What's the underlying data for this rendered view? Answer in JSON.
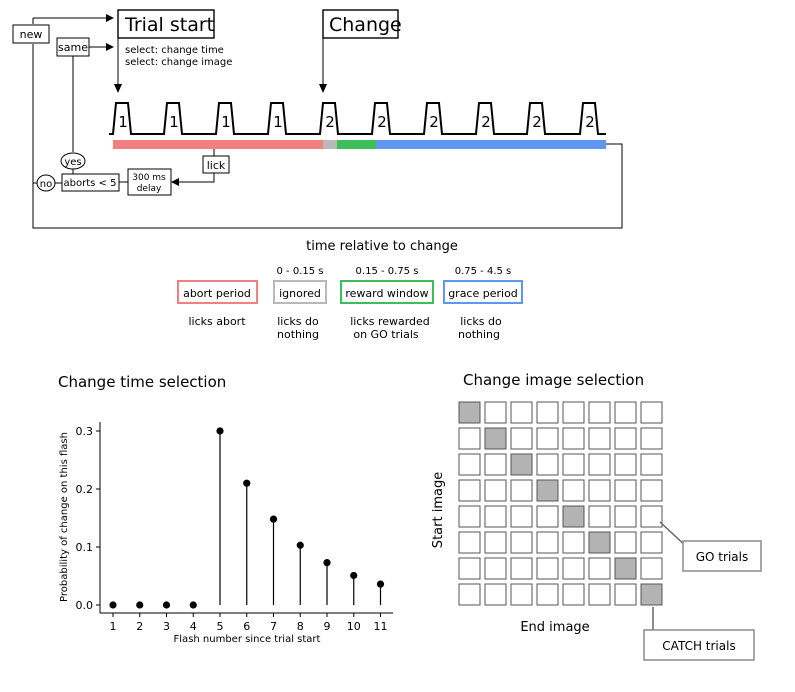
{
  "top": {
    "new_label": "new",
    "same_label": "same",
    "trial_start_label": "Trial start",
    "change_label": "Change",
    "select_lines": [
      "select: change time",
      "select: change image"
    ],
    "flash_numbers": [
      "1",
      "1",
      "1",
      "1",
      "2",
      "2",
      "2",
      "2",
      "2",
      "2"
    ],
    "lick_label": "lick",
    "yes_label": "yes",
    "no_label": "no",
    "aborts_label": "aborts < 5",
    "delay_lines": [
      "300 ms",
      "delay"
    ],
    "period_colors": {
      "abort": "#f28080",
      "ignored": "#b9b9b9",
      "reward": "#3cbf5a",
      "grace": "#5f96f0"
    }
  },
  "legend": {
    "axis_title": "time relative to change",
    "items": [
      {
        "name": "abort-period",
        "range": "",
        "label": "abort period",
        "desc": [
          "licks abort"
        ]
      },
      {
        "name": "ignored",
        "range": "0 - 0.15 s",
        "label": "ignored",
        "desc": [
          "licks do",
          "nothing"
        ]
      },
      {
        "name": "reward-window",
        "range": "0.15 - 0.75 s",
        "label": "reward window",
        "desc": [
          "licks rewarded",
          "on GO trials"
        ]
      },
      {
        "name": "grace-period",
        "range": "0.75 - 4.5 s",
        "label": "grace period",
        "desc": [
          "licks do",
          "nothing"
        ]
      }
    ]
  },
  "chart_data": {
    "type": "scatter",
    "title": "Change time selection",
    "xlabel": "Flash number since trial start",
    "ylabel": "Probability of change on this flash",
    "x": [
      1,
      2,
      3,
      4,
      5,
      6,
      7,
      8,
      9,
      10,
      11
    ],
    "values": [
      0,
      0,
      0,
      0,
      0.3,
      0.21,
      0.148,
      0.103,
      0.073,
      0.051,
      0.036
    ],
    "xticks": [
      "1",
      "2",
      "3",
      "4",
      "5",
      "6",
      "7",
      "8",
      "9",
      "10",
      "11"
    ],
    "yticks": [
      "0.0",
      "0.1",
      "0.2",
      "0.3"
    ],
    "ylim": [
      0,
      0.32
    ],
    "xlim": [
      0.5,
      11.6
    ],
    "grid": false,
    "style": "stem"
  },
  "matrix": {
    "title": "Change image selection",
    "ylabel": "Start image",
    "xlabel": "End image",
    "size": 8,
    "go_label": "GO trials",
    "catch_label": "CATCH trials"
  }
}
